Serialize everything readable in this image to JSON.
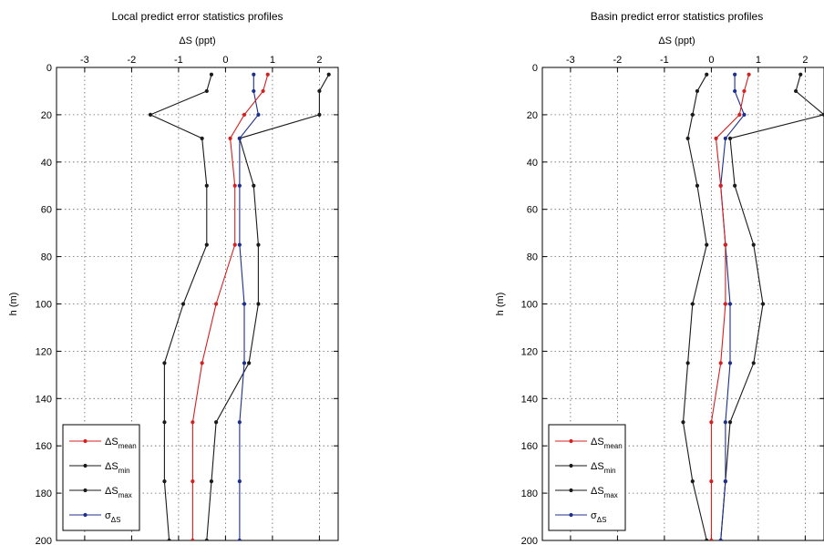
{
  "chart_data": [
    {
      "type": "line",
      "title": "Local predict error statistics profiles",
      "xlabel": "ΔS (ppt)",
      "ylabel": "h (m)",
      "xlim": [
        -3.6,
        2.4
      ],
      "ylim": [
        0,
        200
      ],
      "y_reversed": true,
      "x_axis_position": "top",
      "grid": true,
      "xticks": [
        -3,
        -2,
        -1,
        0,
        1,
        2
      ],
      "yticks": [
        0,
        20,
        40,
        60,
        80,
        100,
        120,
        140,
        160,
        180,
        200
      ],
      "legend": {
        "position": "bottom-left",
        "entries": [
          {
            "base": "ΔS",
            "sub": "mean"
          },
          {
            "base": "ΔS",
            "sub": "min"
          },
          {
            "base": "ΔS",
            "sub": "max"
          },
          {
            "base": "σ",
            "sub": "ΔS"
          }
        ]
      },
      "y": [
        3,
        10,
        20,
        30,
        50,
        75,
        100,
        125,
        150,
        175,
        200
      ],
      "series": [
        {
          "key": "mean",
          "color": "#d42020",
          "values": [
            0.9,
            0.8,
            0.4,
            0.1,
            0.2,
            0.2,
            -0.2,
            -0.5,
            -0.7,
            -0.7,
            -0.7
          ]
        },
        {
          "key": "min",
          "color": "#1a1a1a",
          "values": [
            -0.3,
            -0.4,
            -1.6,
            -0.5,
            -0.4,
            -0.4,
            -0.9,
            -1.3,
            -1.3,
            -1.3,
            -1.2
          ]
        },
        {
          "key": "max",
          "color": "#1a1a1a",
          "values": [
            2.2,
            2.0,
            2.0,
            0.3,
            0.6,
            0.7,
            0.7,
            0.5,
            -0.2,
            -0.3,
            -0.4
          ]
        },
        {
          "key": "sigma",
          "color": "#1c2f8c",
          "values": [
            0.6,
            0.6,
            0.7,
            0.3,
            0.3,
            0.3,
            0.4,
            0.4,
            0.3,
            0.3,
            0.3
          ]
        }
      ]
    },
    {
      "type": "line",
      "title": "Basin predict error statistics profiles",
      "xlabel": "ΔS (ppt)",
      "ylabel": "h (m)",
      "xlim": [
        -3.6,
        2.4
      ],
      "ylim": [
        0,
        200
      ],
      "y_reversed": true,
      "x_axis_position": "top",
      "grid": true,
      "xticks": [
        -3,
        -2,
        -1,
        0,
        1,
        2
      ],
      "yticks": [
        0,
        20,
        40,
        60,
        80,
        100,
        120,
        140,
        160,
        180,
        200
      ],
      "legend": {
        "position": "bottom-left",
        "entries": [
          {
            "base": "ΔS",
            "sub": "mean"
          },
          {
            "base": "ΔS",
            "sub": "min"
          },
          {
            "base": "ΔS",
            "sub": "max"
          },
          {
            "base": "σ",
            "sub": "ΔS"
          }
        ]
      },
      "y": [
        3,
        10,
        20,
        30,
        50,
        75,
        100,
        125,
        150,
        175,
        200
      ],
      "series": [
        {
          "key": "mean",
          "color": "#d42020",
          "values": [
            0.8,
            0.7,
            0.6,
            0.1,
            0.2,
            0.3,
            0.3,
            0.2,
            0.0,
            0.0,
            0.0
          ]
        },
        {
          "key": "min",
          "color": "#1a1a1a",
          "values": [
            -0.1,
            -0.3,
            -0.4,
            -0.5,
            -0.3,
            -0.1,
            -0.4,
            -0.5,
            -0.6,
            -0.4,
            -0.1
          ]
        },
        {
          "key": "max",
          "color": "#1a1a1a",
          "values": [
            1.9,
            1.8,
            2.4,
            0.4,
            0.5,
            0.9,
            1.1,
            0.9,
            0.4,
            0.3,
            0.2
          ]
        },
        {
          "key": "sigma",
          "color": "#1c2f8c",
          "values": [
            0.5,
            0.5,
            0.7,
            0.3,
            0.2,
            0.3,
            0.4,
            0.4,
            0.3,
            0.3,
            0.2
          ]
        }
      ]
    }
  ]
}
